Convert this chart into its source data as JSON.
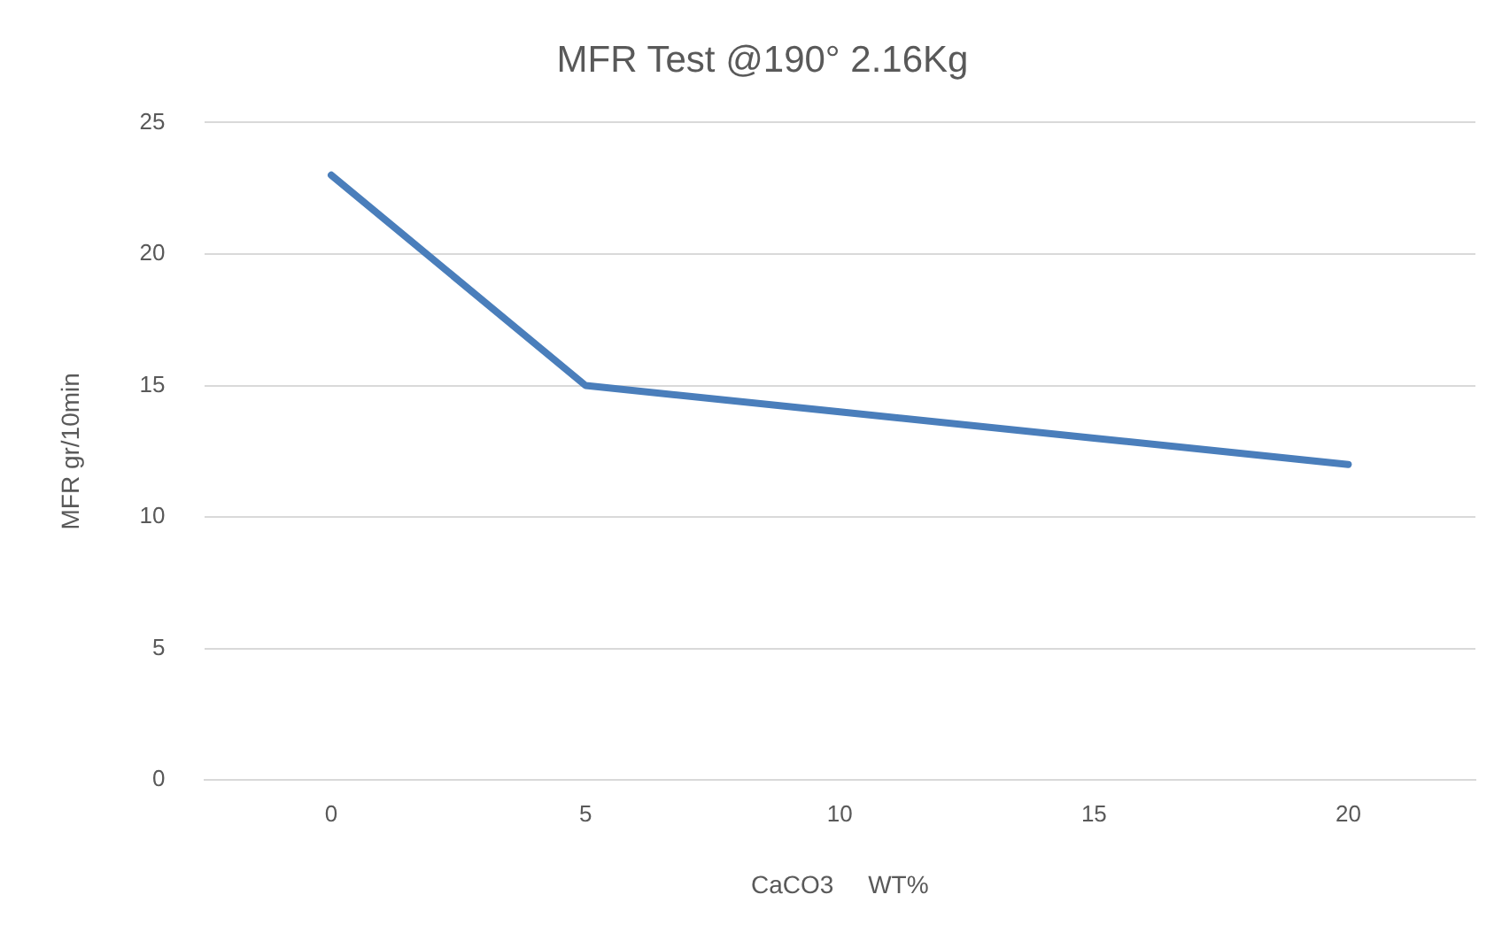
{
  "chart_data": {
    "type": "line",
    "title": "MFR Test @190° 2.16Kg",
    "xlabel": "CaCO3     WT%",
    "ylabel": "MFR gr/10min",
    "categories": [
      "0",
      "5",
      "10",
      "15",
      "20"
    ],
    "series": [
      {
        "color": "#4a7ebb",
        "values": [
          23,
          15,
          14,
          13,
          12
        ]
      }
    ],
    "ylim": [
      0,
      25
    ],
    "yticks": [
      0,
      5,
      10,
      15,
      20,
      25
    ],
    "grid": "y",
    "legend": false,
    "marker": "none",
    "line_style": "solid"
  }
}
